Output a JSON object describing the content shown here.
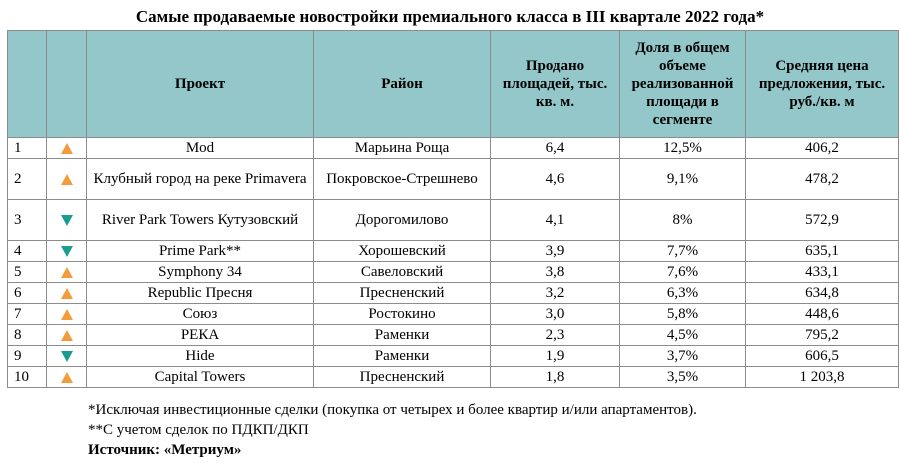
{
  "title": "Самые продаваемые новостройки премиального класса в III квартале 2022 года*",
  "headers": {
    "project": "Проект",
    "district": "Район",
    "sold": "Продано площадей, тыс. кв. м.",
    "share": "Доля в общем объеме реализованной площади в сегменте",
    "price": "Средняя цена предложения, тыс. руб./кв. м"
  },
  "trend_colors": {
    "up": "#f39c3d",
    "down": "#1a9d8f"
  },
  "header_bg": "#93c7c9",
  "rows": [
    {
      "rank": "1",
      "trend": "up",
      "project": "Mod",
      "district": "Марьина Роща",
      "sold": "6,4",
      "share": "12,5%",
      "price": "406,2"
    },
    {
      "rank": "2",
      "trend": "up",
      "project": "Клубный город на реке Primavera",
      "district": "Покровское-Стрешнево",
      "sold": "4,6",
      "share": "9,1%",
      "price": "478,2"
    },
    {
      "rank": "3",
      "trend": "down",
      "project": "River Park Towers Кутузовский",
      "district": "Дорогомилово",
      "sold": "4,1",
      "share": "8%",
      "price": "572,9"
    },
    {
      "rank": "4",
      "trend": "down",
      "project": "Prime Park**",
      "district": "Хорошевский",
      "sold": "3,9",
      "share": "7,7%",
      "price": "635,1"
    },
    {
      "rank": "5",
      "trend": "up",
      "project": "Symphony 34",
      "district": "Савеловский",
      "sold": "3,8",
      "share": "7,6%",
      "price": "433,1"
    },
    {
      "rank": "6",
      "trend": "up",
      "project": "Republic Пресня",
      "district": "Пресненский",
      "sold": "3,2",
      "share": "6,3%",
      "price": "634,8"
    },
    {
      "rank": "7",
      "trend": "up",
      "project": "Союз",
      "district": "Ростокино",
      "sold": "3,0",
      "share": "5,8%",
      "price": "448,6"
    },
    {
      "rank": "8",
      "trend": "up",
      "project": "РЕКА",
      "district": "Раменки",
      "sold": "2,3",
      "share": "4,5%",
      "price": "795,2"
    },
    {
      "rank": "9",
      "trend": "down",
      "project": "Hide",
      "district": "Раменки",
      "sold": "1,9",
      "share": "3,7%",
      "price": "606,5"
    },
    {
      "rank": "10",
      "trend": "up",
      "project": "Capital Towers",
      "district": "Пресненский",
      "sold": "1,8",
      "share": "3,5%",
      "price": "1 203,8"
    }
  ],
  "notes": {
    "note1": "*Исключая инвестиционные сделки (покупка от четырех и более квартир и/или апартаментов).",
    "note2": "**С учетом сделок по ПДКП/ДКП",
    "source": "Источник: «Метриум»"
  }
}
